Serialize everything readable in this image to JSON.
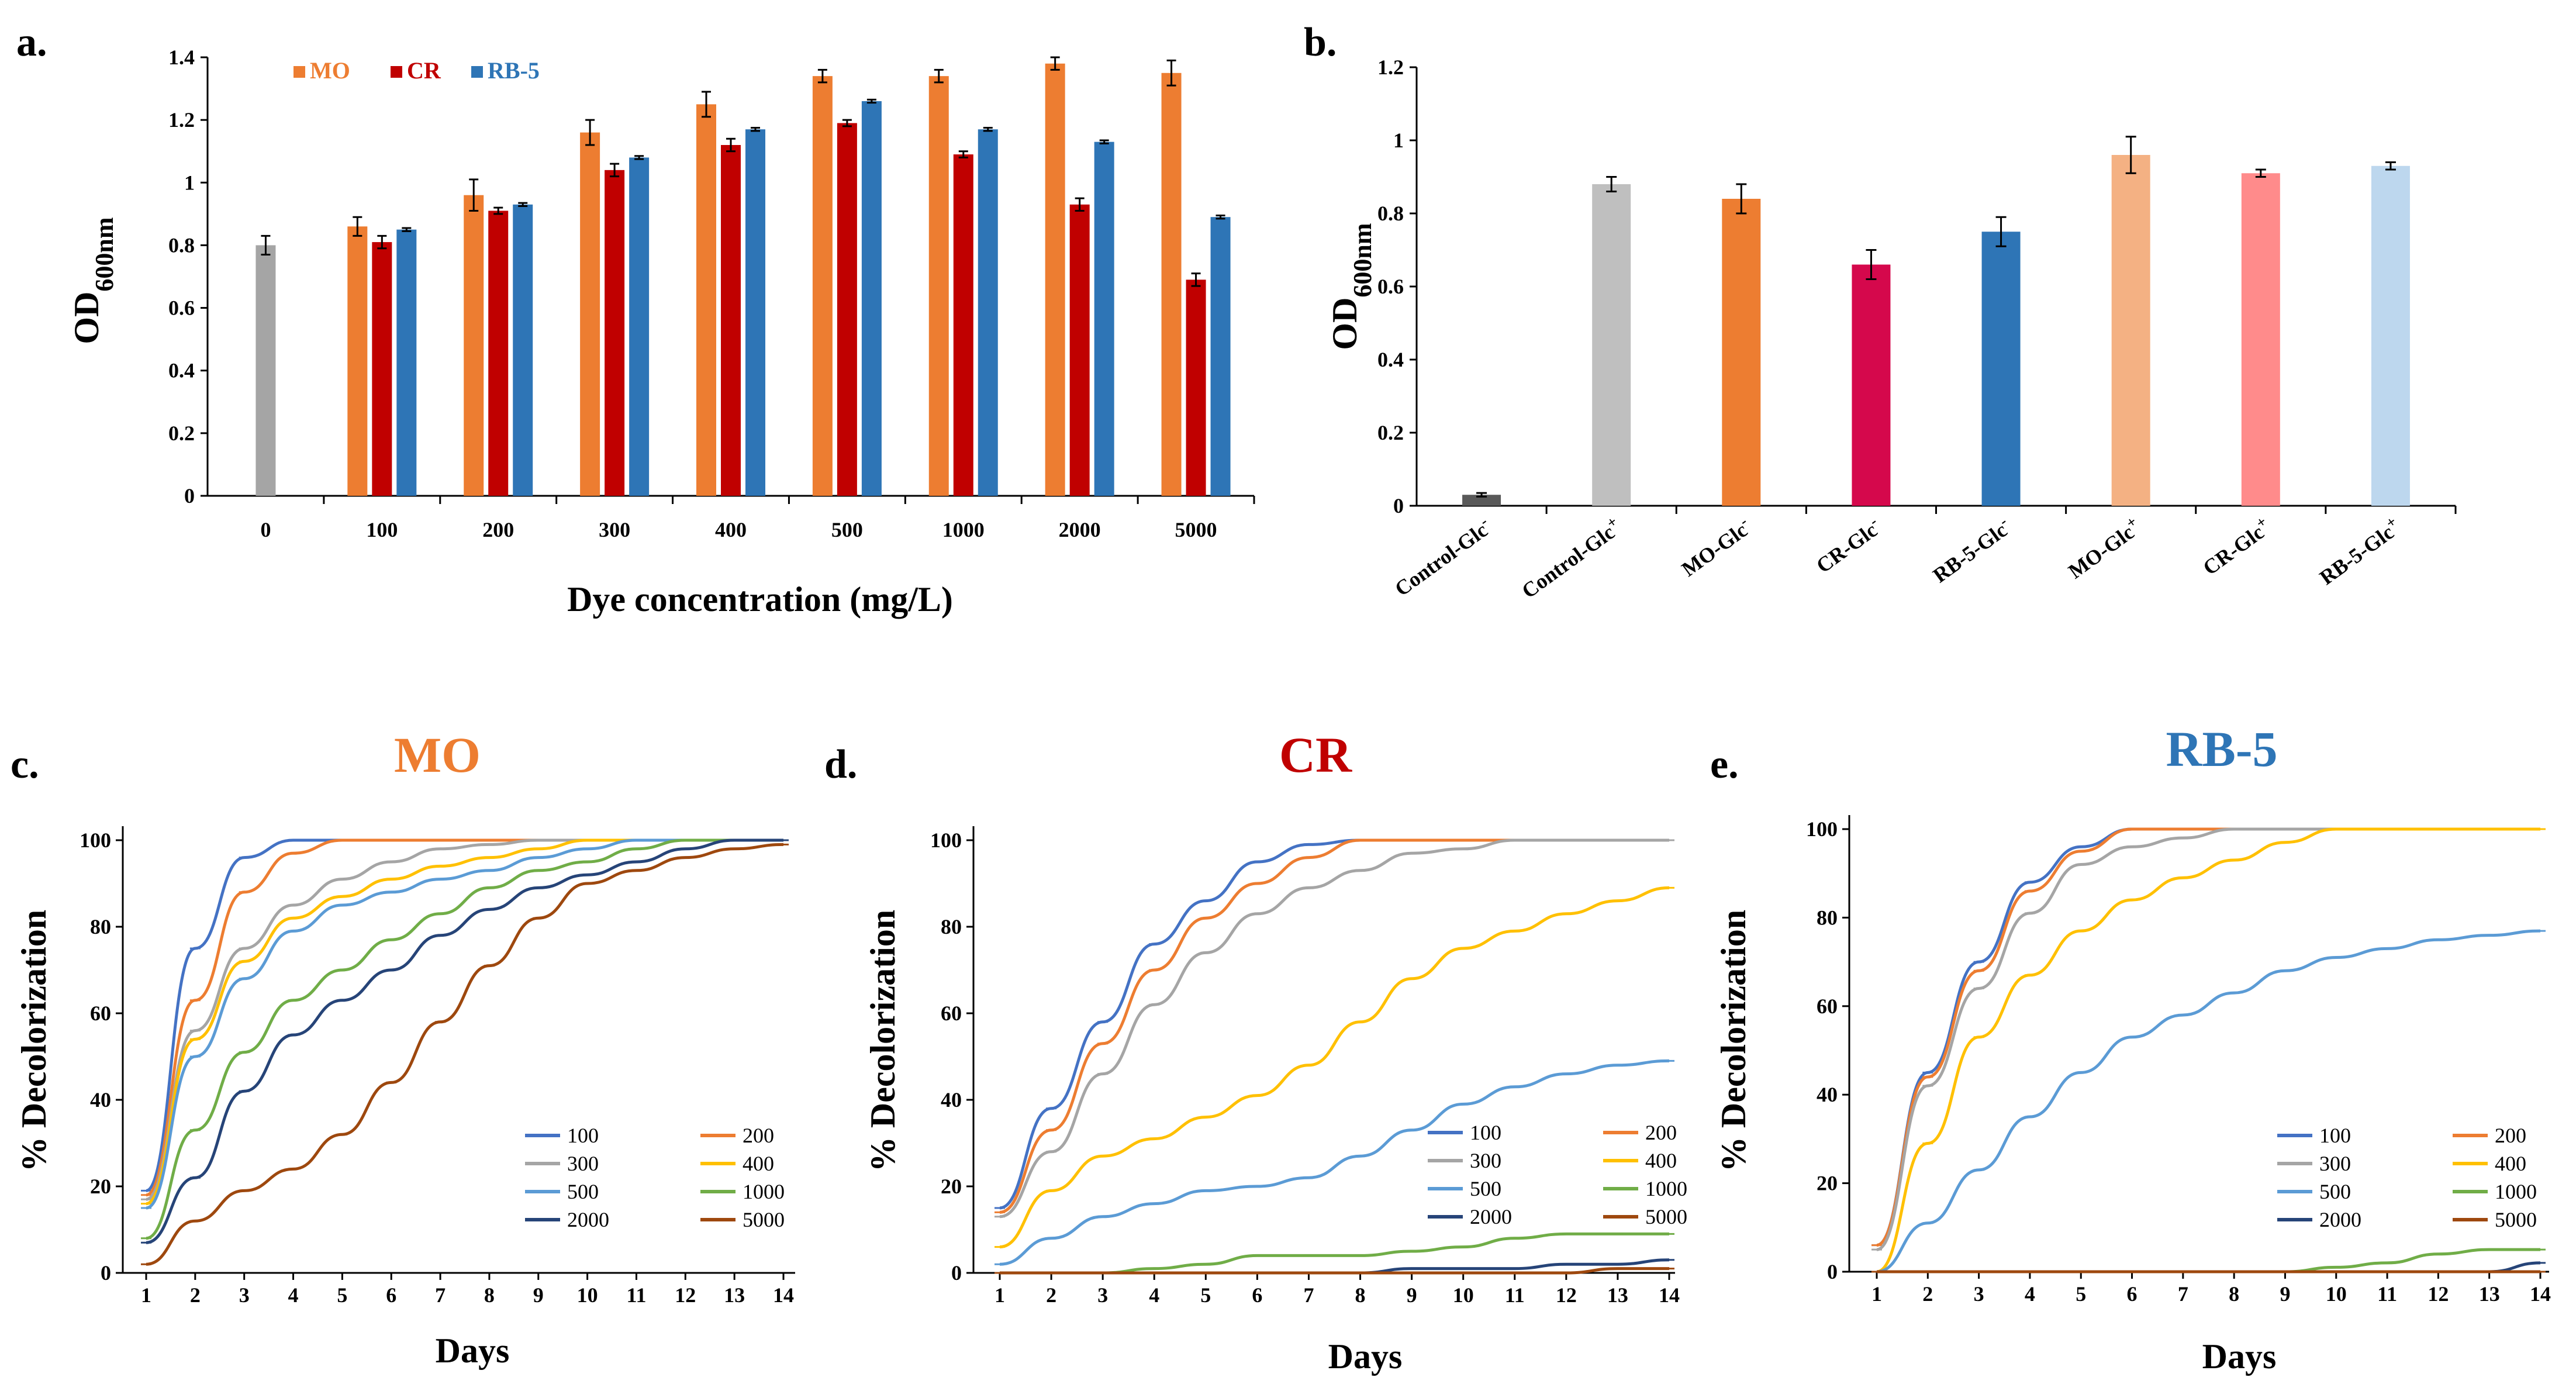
{
  "colors": {
    "gray": "#a5a5a5",
    "orange": "#ed7d31",
    "red": "#c00000",
    "blue": "#2e75b6",
    "c100": "#4472c4",
    "c200": "#ed7d31",
    "c300": "#a5a5a5",
    "c400": "#ffc000",
    "c500": "#5b9bd5",
    "c1000": "#70ad47",
    "c2000": "#264478",
    "c5000": "#9e480e"
  },
  "chart_data": [
    {
      "id": "a",
      "panel_label": "a.",
      "type": "bar",
      "ylabel": "OD",
      "ylabel_sub": "600nm",
      "xlabel": "Dye concentration (mg/L)",
      "ylim": [
        0,
        1.4
      ],
      "yticks": [
        "0",
        "0.2",
        "0.4",
        "0.6",
        "0.8",
        "1",
        "1.2",
        "1.4"
      ],
      "categories": [
        "0",
        "100",
        "200",
        "300",
        "400",
        "500",
        "1000",
        "2000",
        "5000"
      ],
      "control": {
        "value": 0.8,
        "err": 0.03
      },
      "series": [
        {
          "name": "MO",
          "color": "#ed7d31",
          "values": [
            null,
            0.86,
            0.96,
            1.16,
            1.25,
            1.34,
            1.34,
            1.38,
            1.35
          ],
          "errors": [
            0,
            0.03,
            0.05,
            0.04,
            0.04,
            0.02,
            0.02,
            0.02,
            0.04
          ]
        },
        {
          "name": "CR",
          "color": "#c00000",
          "values": [
            null,
            0.81,
            0.91,
            1.04,
            1.12,
            1.19,
            1.09,
            0.93,
            0.69
          ],
          "errors": [
            0,
            0.02,
            0.01,
            0.02,
            0.02,
            0.01,
            0.01,
            0.02,
            0.02
          ]
        },
        {
          "name": "RB-5",
          "color": "#2e75b6",
          "values": [
            null,
            0.85,
            0.93,
            1.08,
            1.17,
            1.26,
            1.17,
            1.13,
            0.89
          ],
          "errors": [
            0,
            0.005,
            0.005,
            0.005,
            0.005,
            0.005,
            0.005,
            0.005,
            0.005
          ]
        }
      ]
    },
    {
      "id": "b",
      "panel_label": "b.",
      "type": "bar",
      "ylabel": "OD",
      "ylabel_sub": "600nm",
      "ylim": [
        0,
        1.2
      ],
      "yticks": [
        "0",
        "0.2",
        "0.4",
        "0.6",
        "0.8",
        "1",
        "1.2"
      ],
      "categories": [
        {
          "base": "Control-Glc",
          "sup": "-"
        },
        {
          "base": "Control-Glc",
          "sup": "+"
        },
        {
          "base": "MO-Glc",
          "sup": "-"
        },
        {
          "base": "CR-Glc",
          "sup": "-"
        },
        {
          "base": "RB-5-Glc",
          "sup": "-"
        },
        {
          "base": "MO-Glc",
          "sup": "+"
        },
        {
          "base": "CR-Glc",
          "sup": "+"
        },
        {
          "base": "RB-5-Glc",
          "sup": "+"
        }
      ],
      "values": [
        0.03,
        0.88,
        0.84,
        0.66,
        0.75,
        0.96,
        0.91,
        0.93
      ],
      "errors": [
        0.005,
        0.02,
        0.04,
        0.04,
        0.04,
        0.05,
        0.01,
        0.01
      ],
      "bar_colors": [
        "#595959",
        "#bfbfbf",
        "#ed7d31",
        "#d5084c",
        "#2e75b6",
        "#f4b183",
        "#ff8b8b",
        "#bdd7ee"
      ]
    },
    {
      "id": "c",
      "panel_label": "c.",
      "type": "line",
      "title": "MO",
      "title_color": "#ed7d31",
      "xlabel": "Days",
      "ylabel": "% Decolorization",
      "xlim": [
        1,
        14
      ],
      "ylim": [
        0,
        100
      ],
      "xticks": [
        "1",
        "2",
        "3",
        "4",
        "5",
        "6",
        "7",
        "8",
        "9",
        "10",
        "11",
        "12",
        "13",
        "14"
      ],
      "yticks": [
        "0",
        "20",
        "40",
        "60",
        "80",
        "100"
      ],
      "series": [
        {
          "name": "100",
          "color": "#4472c4",
          "values": [
            19,
            75,
            96,
            100,
            100,
            100,
            100,
            100,
            100,
            100,
            100,
            100,
            100,
            100
          ]
        },
        {
          "name": "200",
          "color": "#ed7d31",
          "values": [
            18,
            63,
            88,
            97,
            100,
            100,
            100,
            100,
            100,
            100,
            100,
            100,
            100,
            100
          ]
        },
        {
          "name": "300",
          "color": "#a5a5a5",
          "values": [
            17,
            56,
            75,
            85,
            91,
            95,
            98,
            99,
            100,
            100,
            100,
            100,
            100,
            100
          ]
        },
        {
          "name": "400",
          "color": "#ffc000",
          "values": [
            16,
            54,
            72,
            82,
            87,
            91,
            94,
            96,
            98,
            100,
            100,
            100,
            100,
            100
          ]
        },
        {
          "name": "500",
          "color": "#5b9bd5",
          "values": [
            15,
            50,
            68,
            79,
            85,
            88,
            91,
            93,
            96,
            98,
            100,
            100,
            100,
            100
          ]
        },
        {
          "name": "1000",
          "color": "#70ad47",
          "values": [
            8,
            33,
            51,
            63,
            70,
            77,
            83,
            89,
            93,
            95,
            98,
            100,
            100,
            100
          ]
        },
        {
          "name": "2000",
          "color": "#264478",
          "values": [
            7,
            22,
            42,
            55,
            63,
            70,
            78,
            84,
            89,
            92,
            95,
            98,
            100,
            100
          ]
        },
        {
          "name": "5000",
          "color": "#9e480e",
          "values": [
            2,
            12,
            19,
            24,
            32,
            44,
            58,
            71,
            82,
            90,
            93,
            96,
            98,
            99
          ]
        }
      ],
      "legend": [
        "100",
        "200",
        "300",
        "400",
        "500",
        "1000",
        "2000",
        "5000"
      ]
    },
    {
      "id": "d",
      "panel_label": "d.",
      "type": "line",
      "title": "CR",
      "title_color": "#c00000",
      "xlabel": "Days",
      "ylabel": "% Decolorization",
      "xlim": [
        1,
        14
      ],
      "ylim": [
        0,
        100
      ],
      "xticks": [
        "1",
        "2",
        "3",
        "4",
        "5",
        "6",
        "7",
        "8",
        "9",
        "10",
        "11",
        "12",
        "13",
        "14"
      ],
      "yticks": [
        "0",
        "20",
        "40",
        "60",
        "80",
        "100"
      ],
      "series": [
        {
          "name": "100",
          "color": "#4472c4",
          "values": [
            15,
            38,
            58,
            76,
            86,
            95,
            99,
            100,
            100,
            100,
            100,
            100,
            100,
            100
          ]
        },
        {
          "name": "200",
          "color": "#ed7d31",
          "values": [
            14,
            33,
            53,
            70,
            82,
            90,
            96,
            100,
            100,
            100,
            100,
            100,
            100,
            100
          ]
        },
        {
          "name": "300",
          "color": "#a5a5a5",
          "values": [
            13,
            28,
            46,
            62,
            74,
            83,
            89,
            93,
            97,
            98,
            100,
            100,
            100,
            100
          ]
        },
        {
          "name": "400",
          "color": "#ffc000",
          "values": [
            6,
            19,
            27,
            31,
            36,
            41,
            48,
            58,
            68,
            75,
            79,
            83,
            86,
            89
          ]
        },
        {
          "name": "500",
          "color": "#5b9bd5",
          "values": [
            2,
            8,
            13,
            16,
            19,
            20,
            22,
            27,
            33,
            39,
            43,
            46,
            48,
            49
          ]
        },
        {
          "name": "1000",
          "color": "#70ad47",
          "values": [
            0,
            0,
            0,
            1,
            2,
            4,
            4,
            4,
            5,
            6,
            8,
            9,
            9,
            9
          ]
        },
        {
          "name": "2000",
          "color": "#264478",
          "values": [
            0,
            0,
            0,
            0,
            0,
            0,
            0,
            0,
            1,
            1,
            1,
            2,
            2,
            3
          ]
        },
        {
          "name": "5000",
          "color": "#9e480e",
          "values": [
            0,
            0,
            0,
            0,
            0,
            0,
            0,
            0,
            0,
            0,
            0,
            0,
            1,
            1
          ]
        }
      ],
      "legend": [
        "100",
        "200",
        "300",
        "400",
        "500",
        "1000",
        "2000",
        "5000"
      ]
    },
    {
      "id": "e",
      "panel_label": "e.",
      "type": "line",
      "title": "RB-5",
      "title_color": "#2e75b6",
      "xlabel": "Days",
      "ylabel": "% Decolorization",
      "xlim": [
        1,
        14
      ],
      "ylim": [
        0,
        100
      ],
      "xticks": [
        "1",
        "2",
        "3",
        "4",
        "5",
        "6",
        "7",
        "8",
        "9",
        "10",
        "11",
        "12",
        "13",
        "14"
      ],
      "yticks": [
        "0",
        "20",
        "40",
        "60",
        "80",
        "100"
      ],
      "series": [
        {
          "name": "100",
          "color": "#4472c4",
          "values": [
            6,
            45,
            70,
            88,
            96,
            100,
            100,
            100,
            100,
            100,
            100,
            100,
            100,
            100
          ]
        },
        {
          "name": "200",
          "color": "#ed7d31",
          "values": [
            6,
            44,
            68,
            86,
            95,
            100,
            100,
            100,
            100,
            100,
            100,
            100,
            100,
            100
          ]
        },
        {
          "name": "300",
          "color": "#a5a5a5",
          "values": [
            5,
            42,
            64,
            81,
            92,
            96,
            98,
            100,
            100,
            100,
            100,
            100,
            100,
            100
          ]
        },
        {
          "name": "400",
          "color": "#ffc000",
          "values": [
            0,
            29,
            53,
            67,
            77,
            84,
            89,
            93,
            97,
            100,
            100,
            100,
            100,
            100
          ]
        },
        {
          "name": "500",
          "color": "#5b9bd5",
          "values": [
            0,
            11,
            23,
            35,
            45,
            53,
            58,
            63,
            68,
            71,
            73,
            75,
            76,
            77
          ]
        },
        {
          "name": "1000",
          "color": "#70ad47",
          "values": [
            0,
            0,
            0,
            0,
            0,
            0,
            0,
            0,
            0,
            1,
            2,
            4,
            5,
            5
          ]
        },
        {
          "name": "2000",
          "color": "#264478",
          "values": [
            0,
            0,
            0,
            0,
            0,
            0,
            0,
            0,
            0,
            0,
            0,
            0,
            0,
            2
          ]
        },
        {
          "name": "5000",
          "color": "#9e480e",
          "values": [
            0,
            0,
            0,
            0,
            0,
            0,
            0,
            0,
            0,
            0,
            0,
            0,
            0,
            0
          ]
        }
      ],
      "legend": [
        "100",
        "200",
        "300",
        "400",
        "500",
        "1000",
        "2000",
        "5000"
      ]
    }
  ]
}
